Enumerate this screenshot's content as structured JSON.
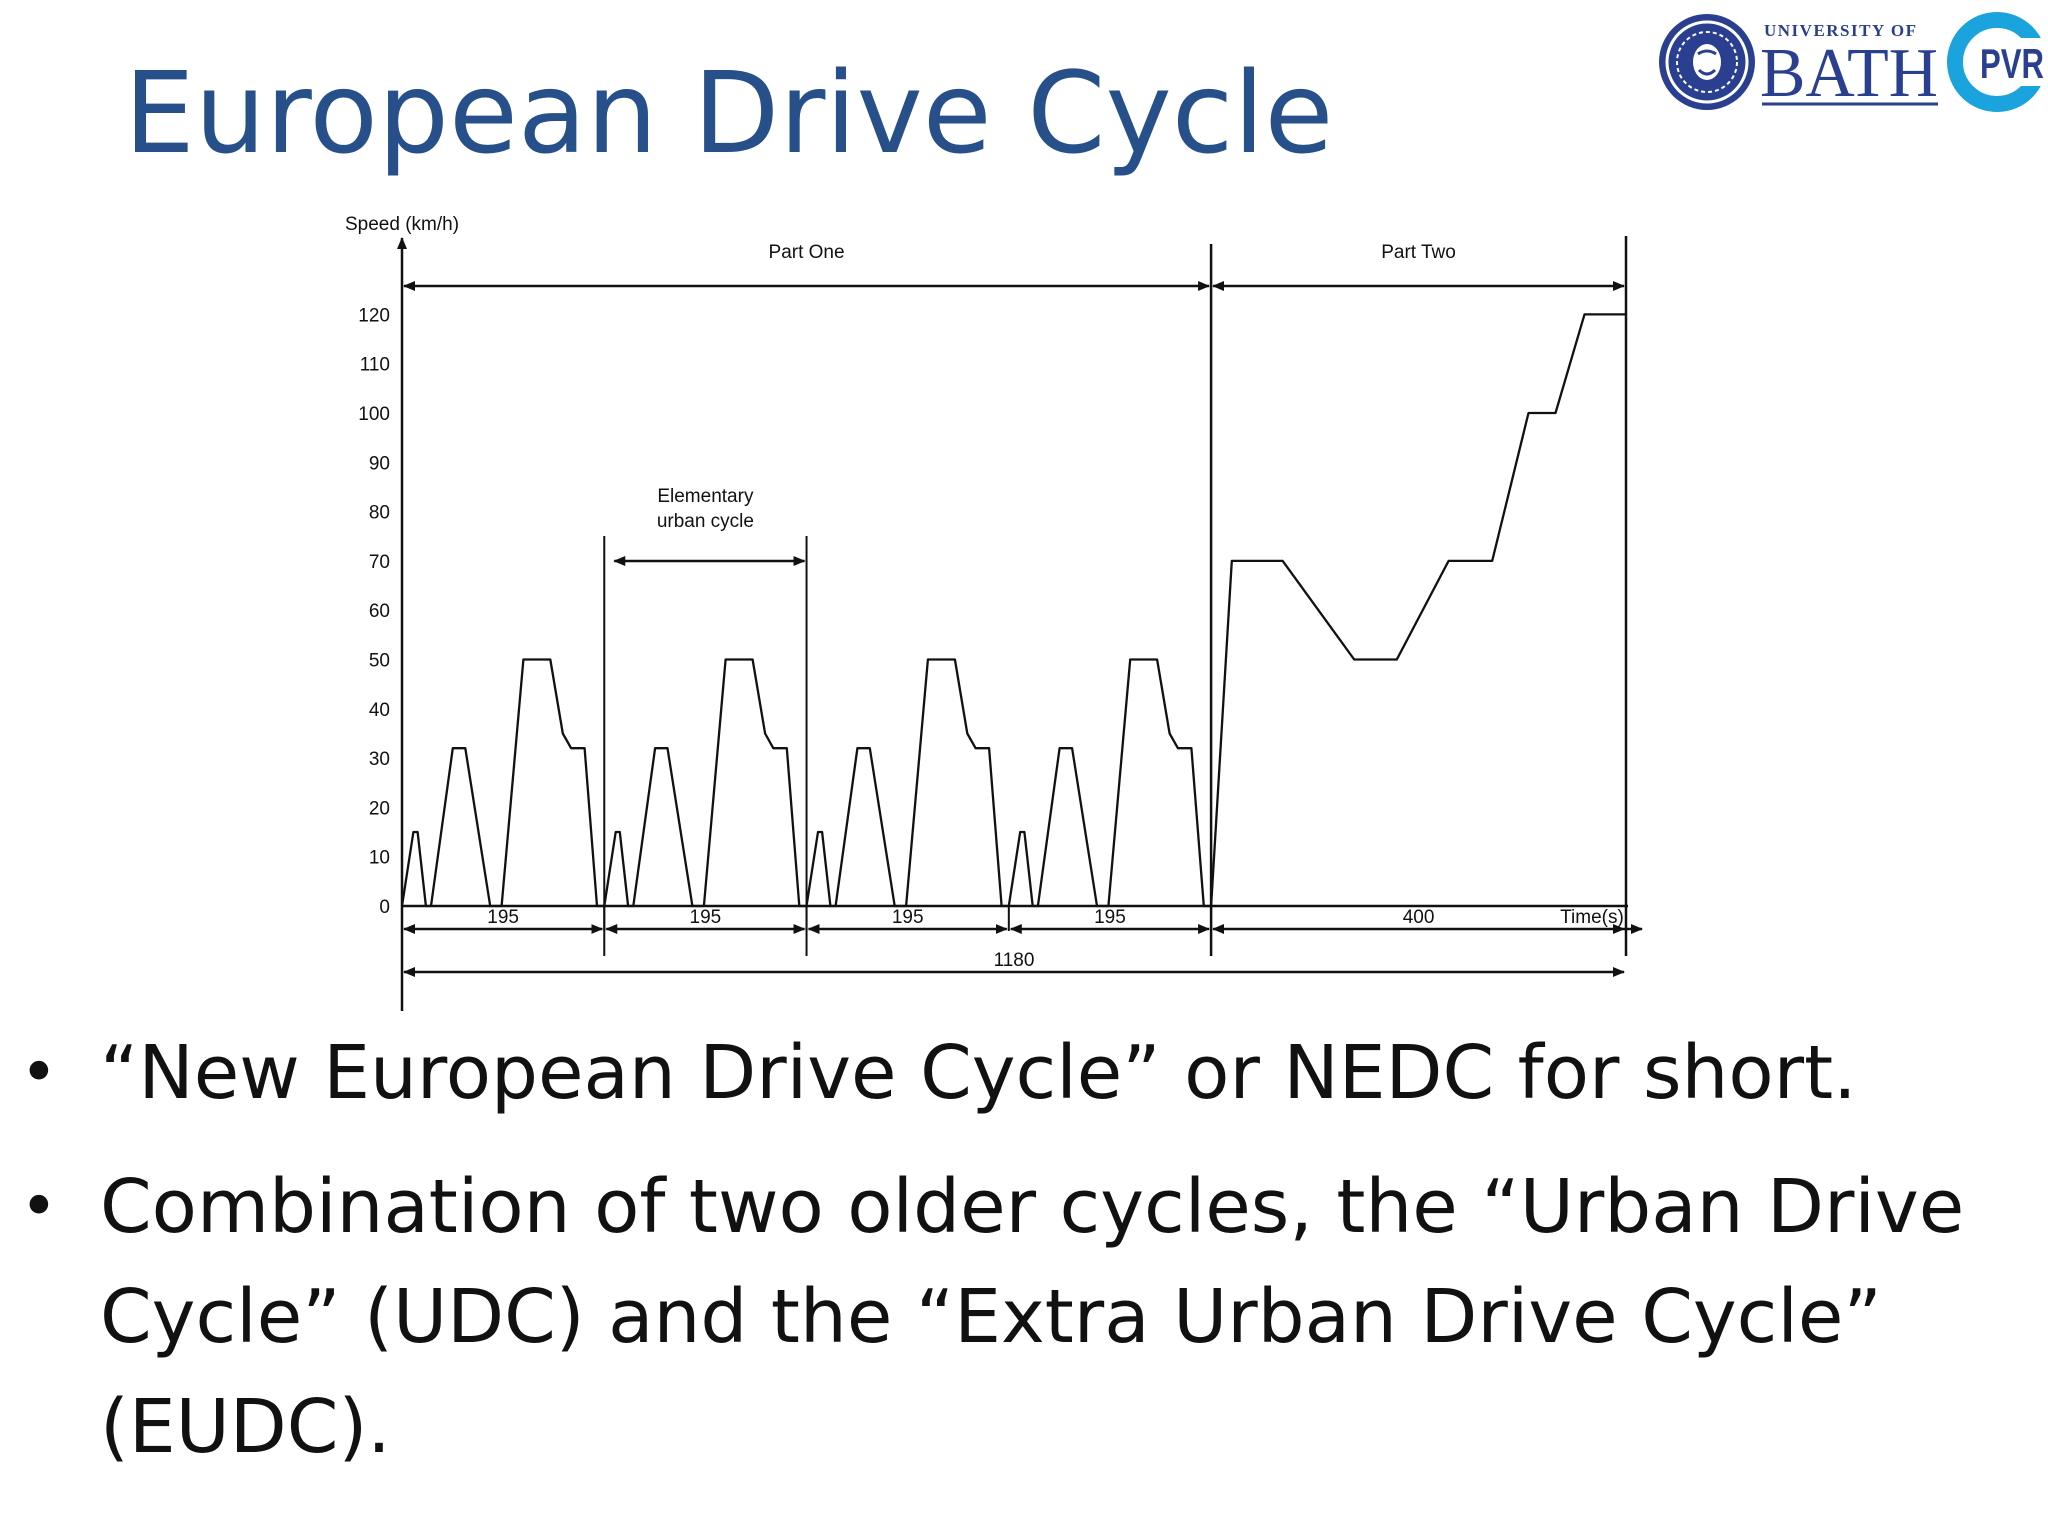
{
  "slide": {
    "title": "European Drive Cycle",
    "bullets": [
      "“New European Drive Cycle” or NEDC for short.",
      "Combination of two older cycles, the “Urban Drive Cycle” (UDC) and the “Extra Urban Drive Cycle” (EUDC)."
    ],
    "bullet_glyph": "•"
  },
  "logo": {
    "university_of": "UNIVERSITY OF",
    "bath": "BATH",
    "pvr": "PVR",
    "seal_icon": "university-seal-icon",
    "brand_color": "#2a3f8f",
    "pvr_color": "#1aa3dc"
  },
  "chart_data": {
    "type": "line",
    "ylabel": "Speed (km/h)",
    "xlabel": "Time(s)",
    "ylim": [
      0,
      130
    ],
    "xlim": [
      0,
      1200
    ],
    "yticks": [
      0,
      10,
      20,
      30,
      40,
      50,
      60,
      70,
      80,
      90,
      100,
      110,
      120
    ],
    "line_color": "#111111",
    "series": [
      {
        "x": [
          0,
          11,
          15,
          23,
          28,
          49,
          61,
          85,
          96,
          117,
          143,
          155,
          163,
          176,
          188,
          195,
          195,
          206,
          210,
          218,
          223,
          244,
          256,
          280,
          291,
          312,
          338,
          350,
          358,
          371,
          383,
          390,
          390,
          401,
          405,
          413,
          418,
          439,
          451,
          475,
          486,
          507,
          533,
          545,
          553,
          566,
          578,
          585,
          585,
          596,
          600,
          608,
          613,
          634,
          646,
          670,
          681,
          702,
          728,
          740,
          748,
          761,
          773,
          780,
          780,
          800,
          849,
          918,
          959,
          1009,
          1051,
          1086,
          1112,
          1140,
          1180
        ],
        "y": [
          0,
          15,
          15,
          0,
          0,
          32,
          32,
          0,
          0,
          50,
          50,
          35,
          32,
          32,
          0,
          0,
          0,
          15,
          15,
          0,
          0,
          32,
          32,
          0,
          0,
          50,
          50,
          35,
          32,
          32,
          0,
          0,
          0,
          15,
          15,
          0,
          0,
          32,
          32,
          0,
          0,
          50,
          50,
          35,
          32,
          32,
          0,
          0,
          0,
          15,
          15,
          0,
          0,
          32,
          32,
          0,
          0,
          50,
          50,
          35,
          32,
          32,
          0,
          0,
          0,
          70,
          70,
          50,
          50,
          70,
          70,
          100,
          100,
          120,
          120
        ]
      }
    ],
    "annotations": {
      "part_one": "Part One",
      "part_two": "Part Two",
      "elementary": [
        "Elementary",
        "urban cycle"
      ],
      "segments": [
        {
          "label": "195",
          "from": 0,
          "to": 195
        },
        {
          "label": "195",
          "from": 195,
          "to": 390
        },
        {
          "label": "195",
          "from": 390,
          "to": 585
        },
        {
          "label": "195",
          "from": 585,
          "to": 780
        },
        {
          "label": "400",
          "from": 780,
          "to": 1180
        }
      ],
      "total": {
        "label": "1180",
        "from": 0,
        "to": 1180
      },
      "part_boundary": 780,
      "elementary_span": [
        195,
        390
      ]
    }
  }
}
